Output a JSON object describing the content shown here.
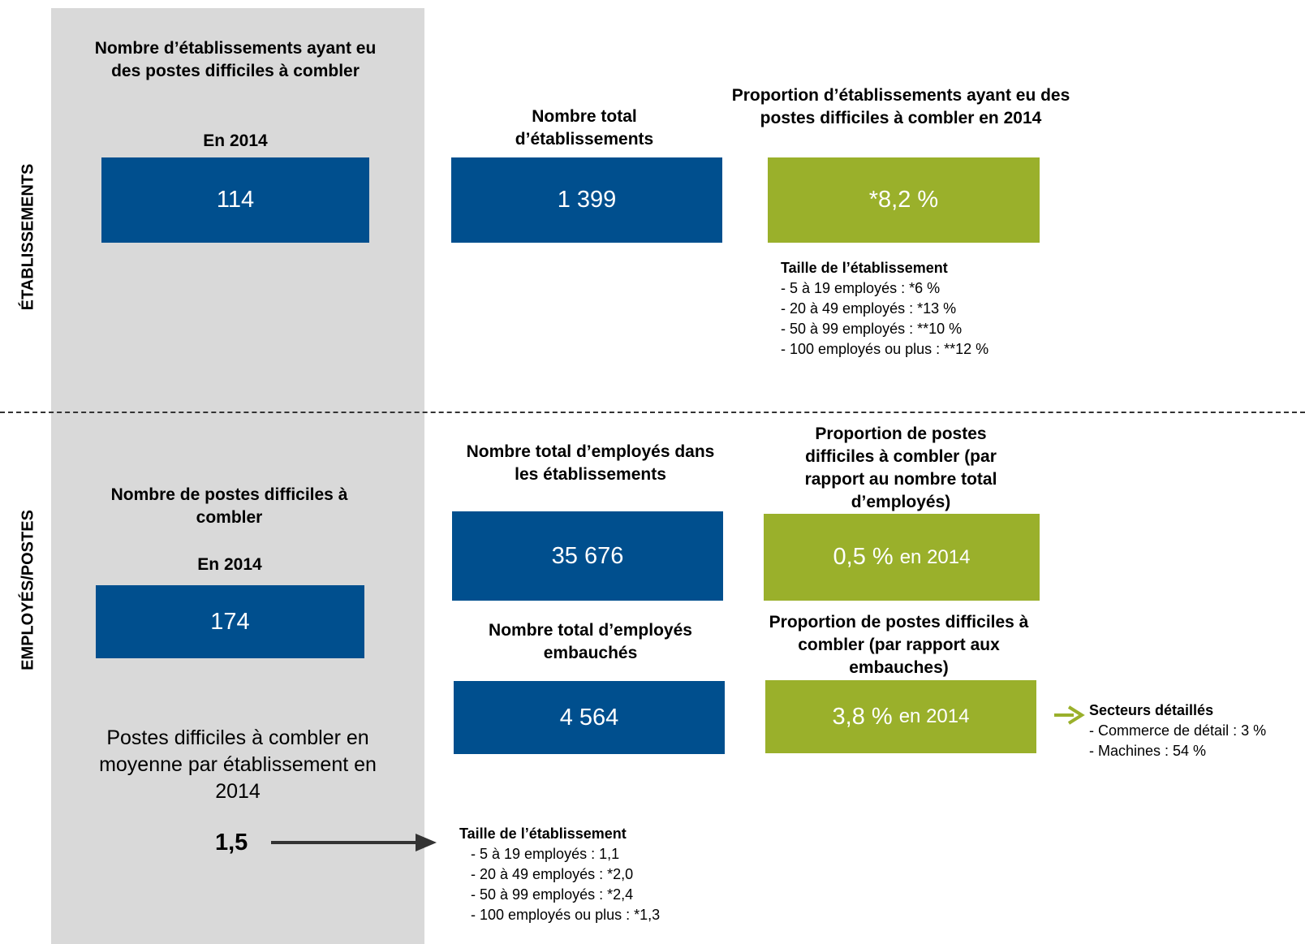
{
  "sections": {
    "top_label": "ÉTABLISSEMENTS",
    "bottom_label": "EMPLOYÉS/POSTES"
  },
  "top": {
    "difficult_establishments": {
      "title": "Nombre d’établissements ayant eu des postes difficiles à combler",
      "year": "En 2014",
      "value": "114"
    },
    "total_establishments": {
      "title": "Nombre total d’établissements",
      "value": "1 399"
    },
    "proportion_establishments": {
      "title": "Proportion d’établissements ayant eu des postes difficiles à combler en 2014",
      "value": "*8,2 %"
    },
    "size_breakdown": {
      "title": "Taille de l’établissement",
      "items": [
        "- 5 à 19 employés : *6 %",
        "- 20 à 49 employés : *13 %",
        "- 50 à 99 employés : **10 %",
        "- 100 employés ou plus : **12 %"
      ]
    }
  },
  "bottom": {
    "difficult_positions": {
      "title": "Nombre de postes difficiles à combler",
      "year": "En 2014",
      "value": "174"
    },
    "average": {
      "text": "Postes difficiles à combler en moyenne par établissement en 2014",
      "value": "1,5"
    },
    "total_employees": {
      "title": "Nombre total d’employés dans les établissements",
      "value": "35 676"
    },
    "proportion_employees": {
      "title": "Proportion de postes difficiles à combler (par rapport au nombre total d’employés)",
      "value": "0,5 %",
      "suffix": "en 2014"
    },
    "total_hired": {
      "title": "Nombre total d’employés embauchés",
      "value": "4 564"
    },
    "proportion_hires": {
      "title": "Proportion de postes difficiles à combler (par rapport aux embauches)",
      "value": "3,8 %",
      "suffix": "en 2014"
    },
    "sectors": {
      "title": "Secteurs détaillés",
      "items": [
        "- Commerce de détail : 3 %",
        "- Machines : 54 %"
      ]
    },
    "size_breakdown": {
      "title": "Taille de l’établissement",
      "items": [
        "- 5 à 19 employés : 1,1",
        "- 20 à 49 employés : *2,0",
        "- 50 à 99 employés : *2,4",
        "- 100 employés ou plus : *1,3"
      ]
    }
  },
  "colors": {
    "blue": "#004f8e",
    "green": "#9ab02b",
    "panel": "#d9d9d9",
    "arrow_dark": "#333333",
    "arrow_green": "#9ab02b"
  }
}
